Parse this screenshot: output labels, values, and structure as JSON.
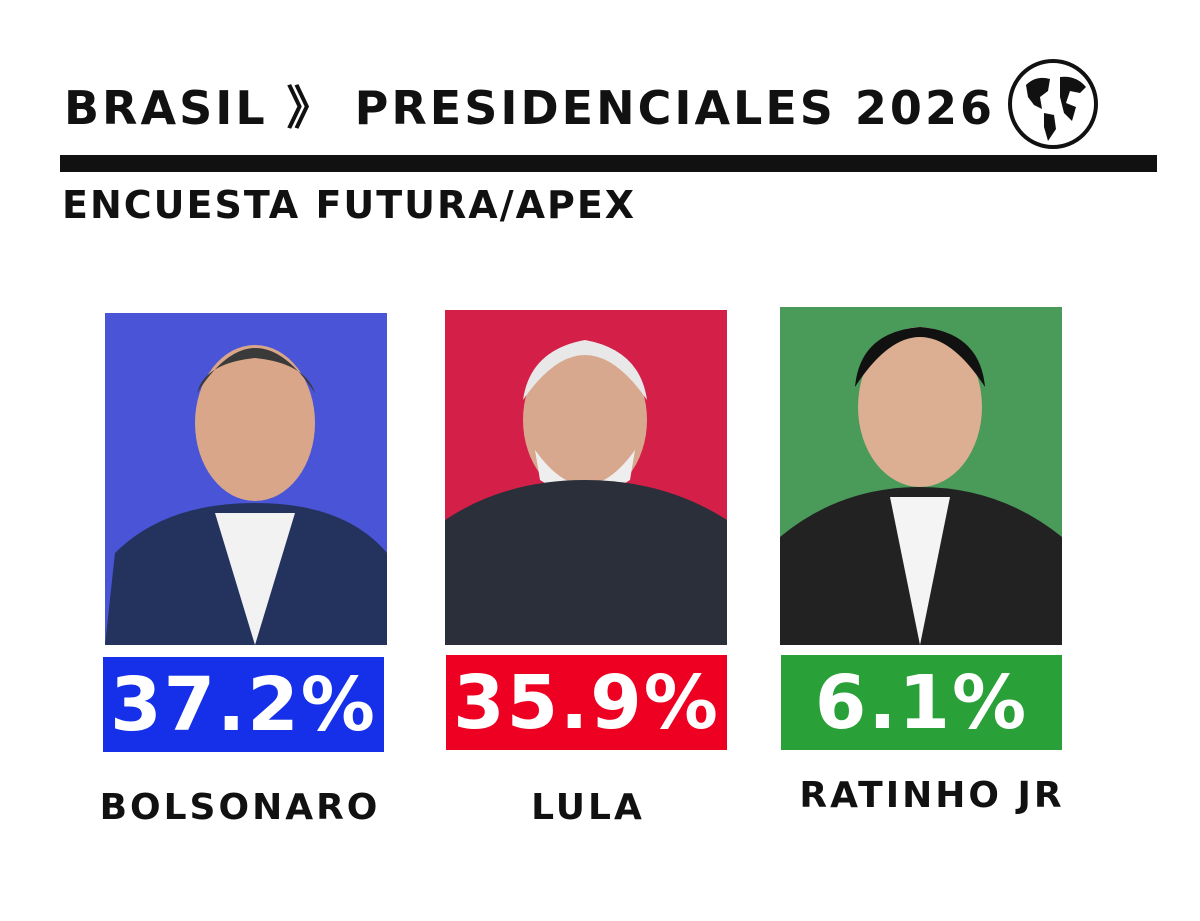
{
  "header": {
    "title": "BRASIL 》 PRESIDENCIALES 2026",
    "subtitle": "ENCUESTA FUTURA/APEX"
  },
  "candidates": [
    {
      "name": "BOLSONARO",
      "result": "37.2%"
    },
    {
      "name": "LULA",
      "result": "35.9%"
    },
    {
      "name": "RATINHO JR",
      "result": "6.1%"
    }
  ]
}
